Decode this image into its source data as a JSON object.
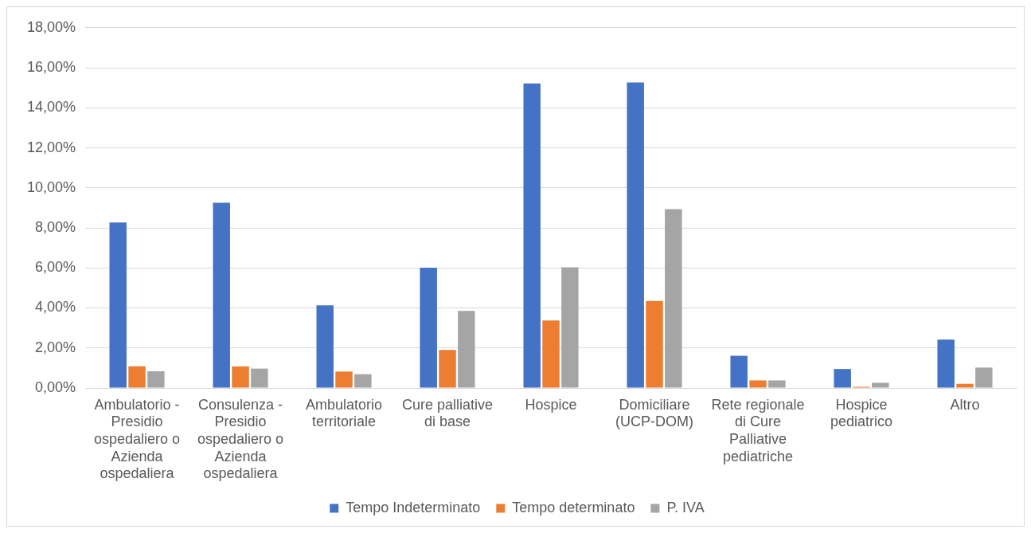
{
  "chart_data": {
    "type": "bar",
    "categories": [
      "Ambulatorio - Presidio ospedaliero o Azienda ospedaliera",
      "Consulenza - Presidio ospedaliero o Azienda ospedaliera",
      "Ambulatorio territoriale",
      "Cure palliative di base",
      "Hospice",
      "Domiciliare (UCP-DOM)",
      "Rete regionale di Cure Palliative pediatriche",
      "Hospice pediatrico",
      "Altro"
    ],
    "series": [
      {
        "name": "Tempo Indeterminato",
        "color": "#4472c4",
        "values": [
          8.27,
          9.25,
          4.13,
          6.01,
          15.22,
          15.27,
          1.61,
          0.95,
          2.42
        ]
      },
      {
        "name": "Tempo determinato",
        "color": "#ed7d31",
        "values": [
          1.08,
          1.08,
          0.82,
          1.9,
          3.37,
          4.35,
          0.38,
          0.06,
          0.21
        ]
      },
      {
        "name": "P. IVA",
        "color": "#a5a5a5",
        "values": [
          0.84,
          0.97,
          0.69,
          3.85,
          6.03,
          8.94,
          0.38,
          0.26,
          1.02
        ]
      }
    ],
    "ylim": [
      0,
      18
    ],
    "yticks": [
      {
        "value": 0,
        "label": "0,00%"
      },
      {
        "value": 2,
        "label": "2,00%"
      },
      {
        "value": 4,
        "label": "4,00%"
      },
      {
        "value": 6,
        "label": "6,00%"
      },
      {
        "value": 8,
        "label": "8,00%"
      },
      {
        "value": 10,
        "label": "10,00%"
      },
      {
        "value": 12,
        "label": "12,00%"
      },
      {
        "value": 14,
        "label": "14,00%"
      },
      {
        "value": 16,
        "label": "16,00%"
      },
      {
        "value": 18,
        "label": "18,00%"
      }
    ],
    "grid": "y",
    "legend": "bottom"
  }
}
